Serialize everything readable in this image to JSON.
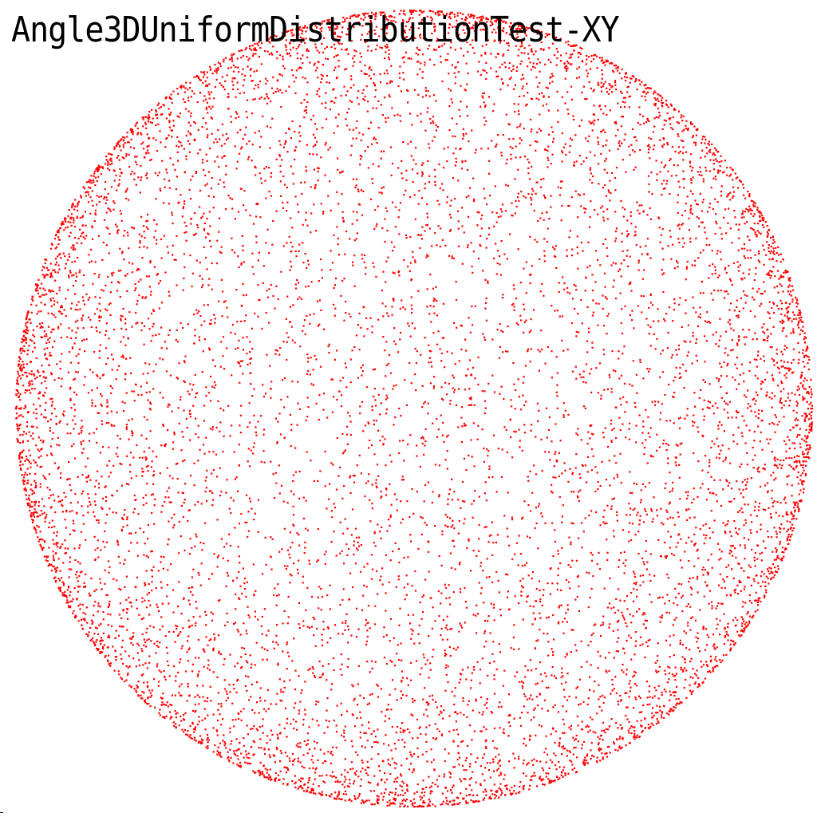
{
  "chart_data": {
    "type": "scatter",
    "title": "Angle3DUniformDistributionTest-XY",
    "xlabel": "",
    "ylabel": "",
    "xlim": [
      -1,
      1
    ],
    "ylim": [
      -1,
      1
    ],
    "grid": false,
    "legend": "none",
    "point_color": "#ff0000",
    "background_color": "#ffffff",
    "distribution": "uniform-on-unit-sphere",
    "projection": "XY",
    "approx_point_count": 10000,
    "series": [
      {
        "values_description_points": [
          [
            0.0,
            1.0
          ],
          [
            0.71,
            0.7
          ],
          [
            1.0,
            0.0
          ],
          [
            0.7,
            -0.71
          ],
          [
            0.0,
            -1.0
          ],
          [
            -0.71,
            -0.7
          ],
          [
            -1.0,
            0.0
          ],
          [
            -0.7,
            0.71
          ],
          [
            0.25,
            0.31
          ],
          [
            -0.42,
            0.18
          ],
          [
            0.12,
            -0.55
          ],
          [
            0.63,
            -0.2
          ],
          [
            -0.33,
            -0.61
          ],
          [
            0.05,
            0.08
          ],
          [
            -0.81,
            0.37
          ],
          [
            0.44,
            0.82
          ]
        ]
      }
    ]
  }
}
